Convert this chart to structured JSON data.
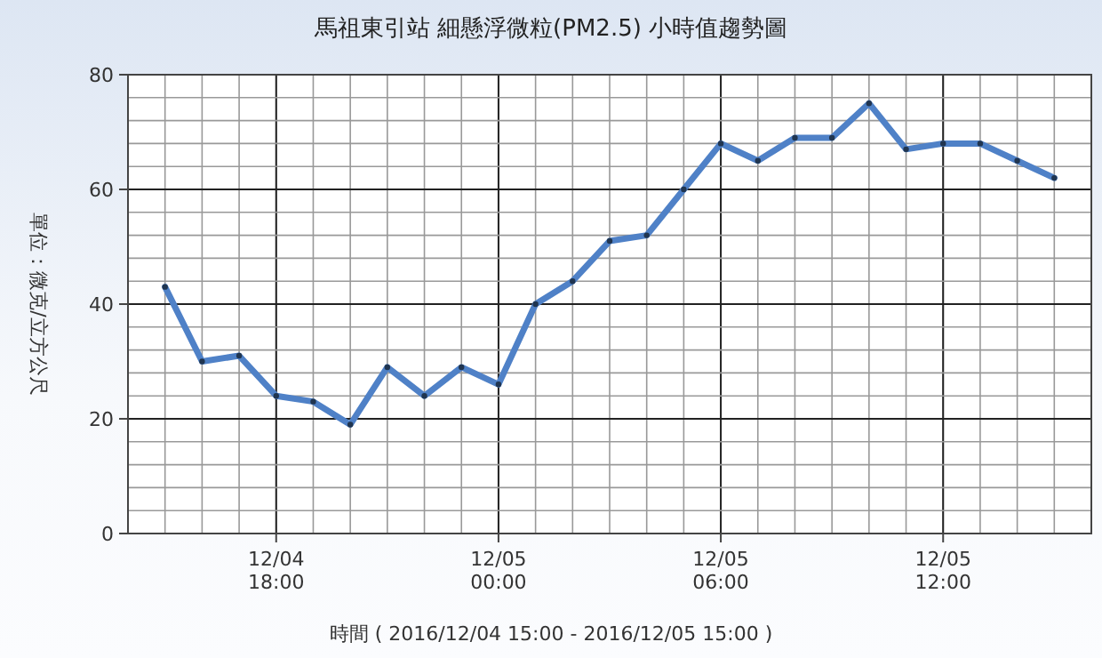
{
  "chart_data": {
    "type": "line",
    "title": "馬祖東引站  細懸浮微粒(PM2.5) 小時值趨勢圖",
    "xlabel": "時間 ( 2016/12/04 15:00 - 2016/12/05 15:00 )",
    "ylabel": "單位：微克/立方公尺",
    "x": [
      "2016-12-04T15:00",
      "2016-12-04T16:00",
      "2016-12-04T17:00",
      "2016-12-04T18:00",
      "2016-12-04T19:00",
      "2016-12-04T20:00",
      "2016-12-04T21:00",
      "2016-12-04T22:00",
      "2016-12-04T23:00",
      "2016-12-05T00:00",
      "2016-12-05T01:00",
      "2016-12-05T02:00",
      "2016-12-05T03:00",
      "2016-12-05T04:00",
      "2016-12-05T05:00",
      "2016-12-05T06:00",
      "2016-12-05T07:00",
      "2016-12-05T08:00",
      "2016-12-05T09:00",
      "2016-12-05T10:00",
      "2016-12-05T11:00",
      "2016-12-05T12:00",
      "2016-12-05T13:00",
      "2016-12-05T14:00",
      "2016-12-05T15:00"
    ],
    "series": [
      {
        "color": "#4f81c7",
        "values": [
          43,
          30,
          31,
          24,
          23,
          19,
          29,
          24,
          29,
          26,
          40,
          44,
          51,
          52,
          60,
          68,
          65,
          69,
          69,
          75,
          67,
          68,
          68,
          65,
          62
        ]
      }
    ],
    "xlim": [
      "2016-12-04T14:00",
      "2016-12-05T16:00"
    ],
    "xticks": [
      {
        "value": "2016-12-04T18:00",
        "label": "12/04 18:00"
      },
      {
        "value": "2016-12-05T00:00",
        "label": "12/05 00:00"
      },
      {
        "value": "2016-12-05T06:00",
        "label": "12/05 06:00"
      },
      {
        "value": "2016-12-05T12:00",
        "label": "12/05 12:00"
      }
    ],
    "ylim": [
      0,
      80
    ],
    "yticks": [
      0,
      20,
      40,
      60,
      80
    ],
    "grid": true,
    "marker": "circle",
    "line_style": "solid"
  }
}
